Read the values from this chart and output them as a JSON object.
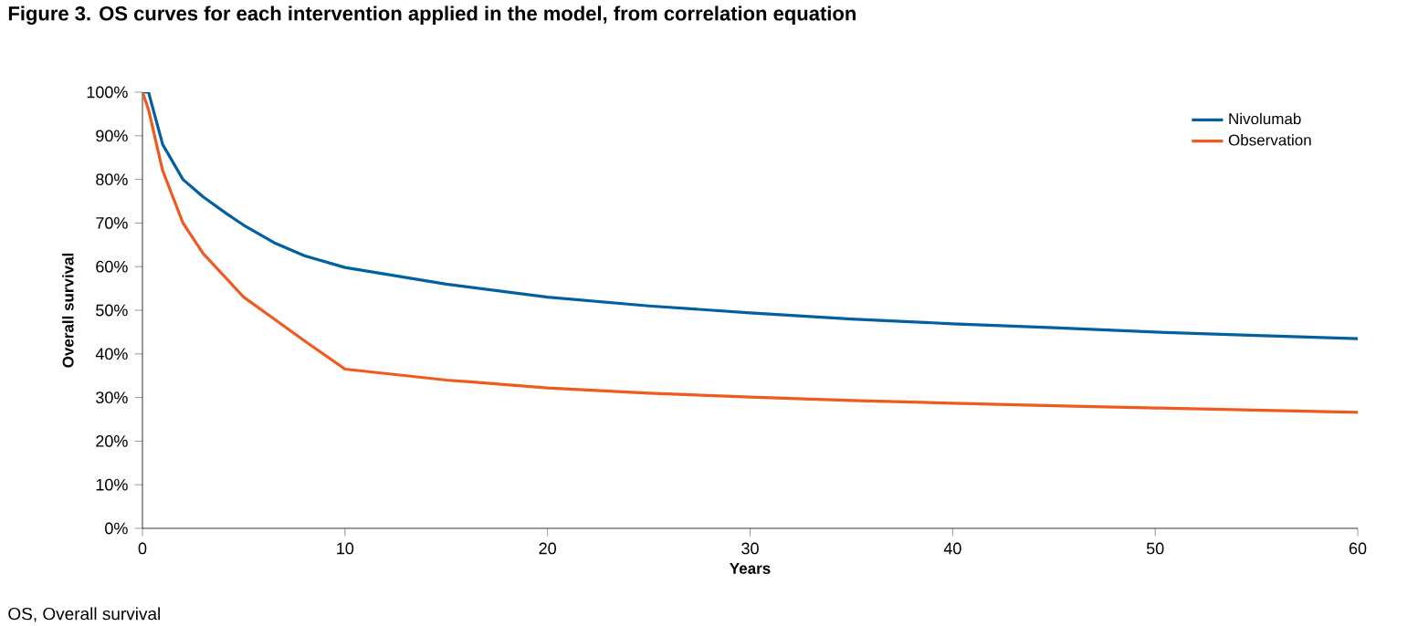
{
  "chart_data": {
    "type": "line",
    "title": "Figure 3. OS curves for each intervention applied in the model, from correlation equation",
    "xlabel": "Years",
    "ylabel": "Overall survival",
    "x": [
      0,
      0.3,
      1,
      2,
      3,
      4.2,
      5,
      6.5,
      8,
      10,
      15,
      20,
      25,
      30,
      35,
      40,
      45,
      50,
      55,
      60
    ],
    "series": [
      {
        "name": "Nivolumab",
        "color": "#0060a0",
        "values": [
          100,
          100,
          88,
          80,
          76,
          72,
          69.5,
          65.5,
          62.5,
          59.8,
          56,
          53,
          51,
          49.4,
          48,
          46.9,
          46,
          45,
          44.2,
          43.5
        ]
      },
      {
        "name": "Observation",
        "color": "#f05a1e",
        "values": [
          100,
          96,
          82,
          70,
          63,
          57,
          53,
          48,
          43,
          36.5,
          34,
          32.2,
          31,
          30.1,
          29.3,
          28.7,
          28.1,
          27.6,
          27.1,
          26.6
        ]
      }
    ],
    "xlim": [
      0,
      60
    ],
    "ylim": [
      0,
      100
    ],
    "xticks": [
      0,
      10,
      20,
      30,
      40,
      50,
      60
    ],
    "yticks": [
      {
        "value": 0,
        "label": "0%"
      },
      {
        "value": 10,
        "label": "10%"
      },
      {
        "value": 20,
        "label": "20%"
      },
      {
        "value": 30,
        "label": "30%"
      },
      {
        "value": 40,
        "label": "40%"
      },
      {
        "value": 50,
        "label": "50%"
      },
      {
        "value": 60,
        "label": "60%"
      },
      {
        "value": 70,
        "label": "70%"
      },
      {
        "value": 80,
        "label": "80%"
      },
      {
        "value": 90,
        "label": "90%"
      },
      {
        "value": 100,
        "label": "100%"
      }
    ],
    "legend": "top right",
    "grid": false,
    "marker": "none",
    "line_style": "solid",
    "annotations": [
      "OS, Overall survival"
    ]
  }
}
